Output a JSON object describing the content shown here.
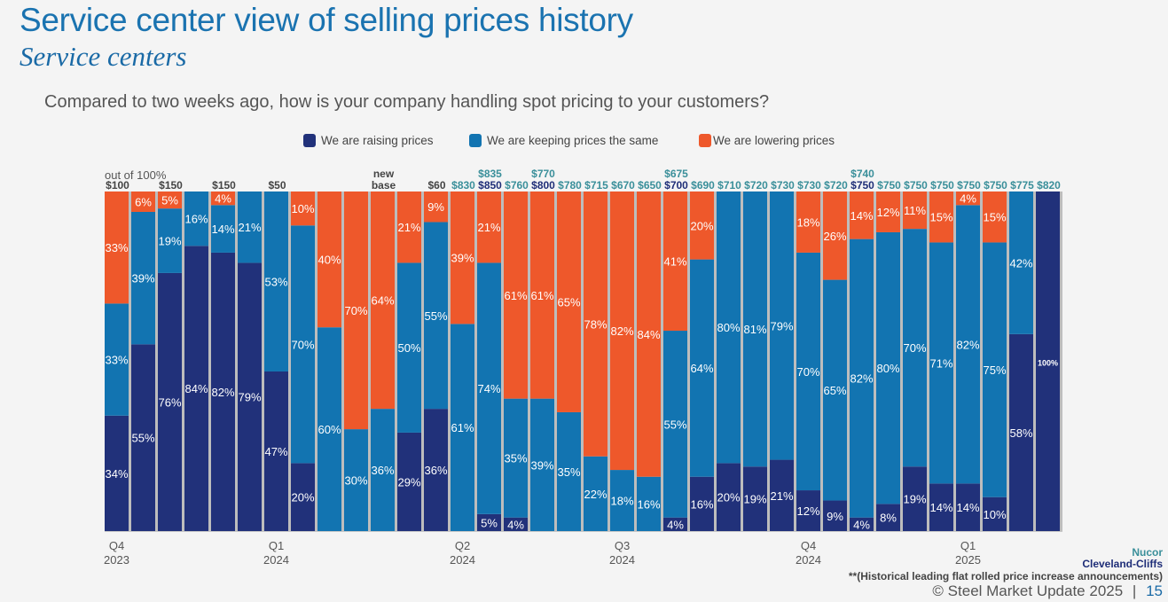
{
  "header": {
    "title": "Service center view of selling prices history",
    "subtitle": "Service centers",
    "question": "Compared to two weeks ago, how is your company handling spot pricing to your customers?"
  },
  "legend": [
    {
      "label": "We are raising prices",
      "color": "#21317a"
    },
    {
      "label": "We are keeping prices the same",
      "color": "#1274b1"
    },
    {
      "label": "We are lowering prices",
      "color": "#ee582b"
    }
  ],
  "annotations": {
    "out_of": "out of 100%",
    "nucor": "Nucor",
    "cliffs": "Cleveland-Cliffs",
    "note": "**(Historical leading flat rolled price increase announcements)",
    "copyright": "© Steel Market Update 2025",
    "separator": "|",
    "page": "15"
  },
  "colors": {
    "raise": "#21317a",
    "keep": "#1274b1",
    "lower": "#ee582b",
    "nucor": "#3a8f9a",
    "cliffs": "#1f2e78",
    "neutral": "#444444"
  },
  "chart_data": {
    "type": "bar",
    "stacked": true,
    "normalized": "100%",
    "title": "Compared to two weeks ago, how is your company handling spot pricing to your customers?",
    "ylim": [
      0,
      100
    ],
    "legend_position": "top",
    "x_axis_labels": [
      {
        "bar": 1,
        "quarter": "Q4",
        "year": "2023"
      },
      {
        "bar": 7,
        "quarter": "Q1",
        "year": "2024"
      },
      {
        "bar": 14,
        "quarter": "Q2",
        "year": "2024"
      },
      {
        "bar": 20,
        "quarter": "Q3",
        "year": "2024"
      },
      {
        "bar": 27,
        "quarter": "Q4",
        "year": "2024"
      },
      {
        "bar": 33,
        "quarter": "Q1",
        "year": "2025"
      }
    ],
    "series": [
      {
        "name": "We are raising prices",
        "values": [
          34,
          55,
          76,
          84,
          82,
          79,
          47,
          20,
          0,
          0,
          0,
          29,
          36,
          0,
          5,
          4,
          0,
          0,
          0,
          0,
          0,
          4,
          16,
          20,
          19,
          21,
          12,
          9,
          4,
          8,
          19,
          14,
          14,
          10,
          58,
          100
        ]
      },
      {
        "name": "We are keeping prices the same",
        "values": [
          33,
          39,
          19,
          16,
          14,
          21,
          53,
          70,
          60,
          30,
          36,
          50,
          55,
          61,
          74,
          35,
          39,
          35,
          22,
          18,
          16,
          55,
          64,
          80,
          81,
          79,
          70,
          65,
          82,
          80,
          70,
          71,
          82,
          75,
          42,
          0
        ]
      },
      {
        "name": "We are lowering prices",
        "values": [
          33,
          6,
          5,
          0,
          4,
          0,
          0,
          10,
          40,
          70,
          64,
          21,
          9,
          39,
          21,
          61,
          61,
          65,
          78,
          82,
          84,
          41,
          20,
          0,
          0,
          0,
          18,
          26,
          14,
          12,
          11,
          15,
          4,
          15,
          0,
          0
        ]
      }
    ],
    "price_labels": [
      {
        "bar": 1,
        "lower": "$100",
        "lower_type": "neutral"
      },
      {
        "bar": 3,
        "lower": "$150",
        "lower_type": "neutral"
      },
      {
        "bar": 5,
        "lower": "$150",
        "lower_type": "neutral"
      },
      {
        "bar": 7,
        "lower": "$50",
        "lower_type": "neutral"
      },
      {
        "bar": 11,
        "upper": "new",
        "lower": "base",
        "upper_type": "neutral",
        "lower_type": "neutral"
      },
      {
        "bar": 13,
        "lower": "$60",
        "lower_type": "neutral"
      },
      {
        "bar": 14,
        "lower": "$830",
        "lower_type": "nucor"
      },
      {
        "bar": 15,
        "upper": "$835",
        "upper_type": "nucor",
        "lower": "$850",
        "lower_type": "cliffs"
      },
      {
        "bar": 16,
        "lower": "$760",
        "lower_type": "nucor"
      },
      {
        "bar": 17,
        "upper": "$770",
        "upper_type": "nucor",
        "lower": "$800",
        "lower_type": "cliffs"
      },
      {
        "bar": 18,
        "lower": "$780",
        "lower_type": "nucor"
      },
      {
        "bar": 19,
        "lower": "$715",
        "lower_type": "nucor"
      },
      {
        "bar": 20,
        "lower": "$670",
        "lower_type": "nucor"
      },
      {
        "bar": 21,
        "lower": "$650",
        "lower_type": "nucor"
      },
      {
        "bar": 22,
        "upper": "$675",
        "upper_type": "nucor",
        "lower": "$700",
        "lower_type": "cliffs"
      },
      {
        "bar": 23,
        "lower": "$690",
        "lower_type": "nucor"
      },
      {
        "bar": 24,
        "lower": "$710",
        "lower_type": "nucor"
      },
      {
        "bar": 25,
        "lower": "$720",
        "lower_type": "nucor"
      },
      {
        "bar": 26,
        "lower": "$730",
        "lower_type": "nucor"
      },
      {
        "bar": 27,
        "lower": "$730",
        "lower_type": "nucor"
      },
      {
        "bar": 28,
        "lower": "$720",
        "lower_type": "nucor"
      },
      {
        "bar": 29,
        "upper": "$740",
        "upper_type": "nucor",
        "lower": "$750",
        "lower_type": "cliffs"
      },
      {
        "bar": 30,
        "lower": "$750",
        "lower_type": "nucor"
      },
      {
        "bar": 31,
        "lower": "$750",
        "lower_type": "nucor"
      },
      {
        "bar": 32,
        "lower": "$750",
        "lower_type": "nucor"
      },
      {
        "bar": 33,
        "lower": "$750",
        "lower_type": "nucor"
      },
      {
        "bar": 34,
        "lower": "$750",
        "lower_type": "nucor"
      },
      {
        "bar": 35,
        "lower": "$775",
        "lower_type": "nucor"
      },
      {
        "bar": 36,
        "lower": "$820",
        "lower_type": "nucor"
      }
    ]
  }
}
